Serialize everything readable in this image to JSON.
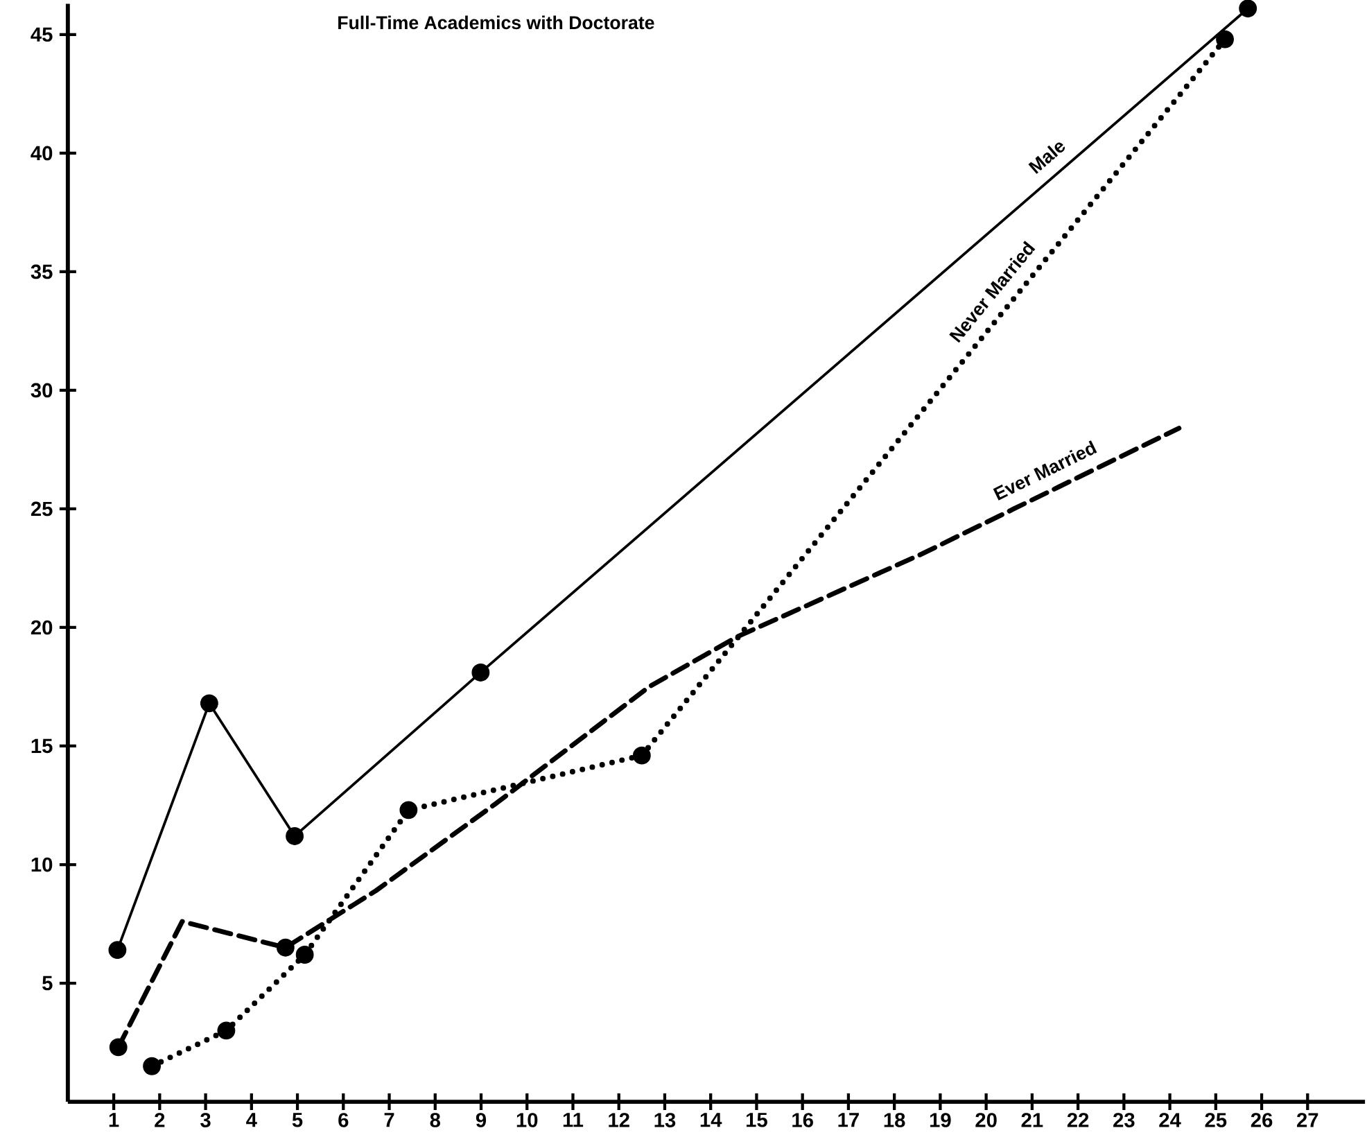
{
  "chart_data": {
    "type": "line",
    "title": "Full-Time Academics with Doctorate",
    "xlim": [
      0,
      28.25
    ],
    "ylim": [
      0,
      46.3
    ],
    "xticks": [
      1,
      2,
      3,
      4,
      5,
      6,
      7,
      8,
      9,
      10,
      11,
      12,
      13,
      14,
      15,
      16,
      17,
      18,
      19,
      20,
      21,
      22,
      23,
      24,
      25,
      26,
      27
    ],
    "yticks": [
      5,
      10,
      15,
      20,
      25,
      30,
      35,
      40,
      45
    ],
    "series": [
      {
        "name": "Male",
        "color": "#000000",
        "line_style": "solid",
        "marker": "circle",
        "x": [
          1.08,
          3.08,
          4.94,
          8.99,
          25.7
        ],
        "values": [
          6.4,
          16.8,
          11.2,
          18.1,
          46.1
        ]
      },
      {
        "name": "Never Married",
        "color": "#000000",
        "line_style": "dotted",
        "marker": "circle",
        "x": [
          1.83,
          3.45,
          5.16,
          7.42,
          12.5,
          25.2
        ],
        "values": [
          1.5,
          3.0,
          6.2,
          12.3,
          14.6,
          44.8
        ]
      },
      {
        "name": "Ever Married",
        "color": "#000000",
        "line_style": "dashed",
        "marker": "none",
        "x": [
          1.1,
          2.49,
          4.74,
          6.71,
          9.34,
          12.66,
          14.57,
          18.6,
          20.6,
          24.2
        ],
        "values": [
          2.3,
          7.6,
          6.5,
          8.9,
          12.6,
          17.5,
          19.6,
          23.1,
          25.0,
          28.4
        ]
      },
      {
        "type": "scatter",
        "color": "#000000",
        "marker": "circle",
        "x": [
          1.1,
          4.74
        ],
        "values": [
          2.3,
          6.5
        ]
      }
    ]
  }
}
